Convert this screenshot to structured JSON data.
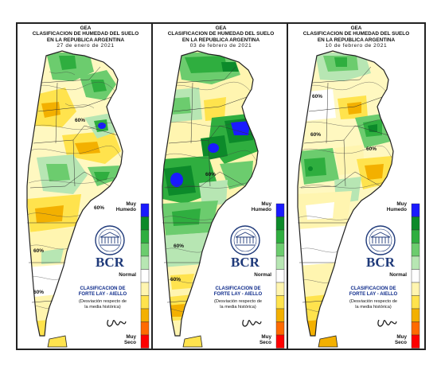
{
  "panels": [
    {
      "title_line1": "GEA",
      "title_line2": "CLASIFICACION DE HUMEDAD DEL SUELO",
      "title_line3": "EN LA REPUBLICA ARGENTINA",
      "date": "27 de enero de 2021",
      "contour_labels": [
        "60%",
        "60%",
        "60%",
        "60%"
      ]
    },
    {
      "title_line1": "GEA",
      "title_line2": "CLASIFICACION DE HUMEDAD DEL SUELO",
      "title_line3": "EN LA REPUBLICA ARGENTINA",
      "date": "03 de febrero de 2021",
      "contour_labels": [
        "60%",
        "60%",
        "60%"
      ]
    },
    {
      "title_line1": "GEA",
      "title_line2": "CLASIFICACION DE HUMEDAD DEL SUELO",
      "title_line3": "EN LA REPUBLICA ARGENTINA",
      "date": "10 de febrero de 2021",
      "contour_labels": [
        "60%",
        "60%",
        "60%"
      ]
    }
  ],
  "legend": {
    "top_label_1": "Muy",
    "top_label_2": "Humedo",
    "middle_label": "Normal",
    "bottom_label_1": "Muy",
    "bottom_label_2": "Seco",
    "colors": [
      "#1a1aff",
      "#0c8a2a",
      "#2fae3f",
      "#6ccc6e",
      "#b7e6b3",
      "#ffffff",
      "#fff5b0",
      "#ffe34d",
      "#f3b000",
      "#ff6a00",
      "#ff0000"
    ]
  },
  "logo": {
    "text": "BCR"
  },
  "classification": {
    "line1": "CLASIFICACION DE",
    "line2": "FORTE LAY - AIELLO",
    "line3": "(Desviación respecto de",
    "line4": "la media histórica)"
  },
  "signature": {
    "text": "JAD"
  }
}
